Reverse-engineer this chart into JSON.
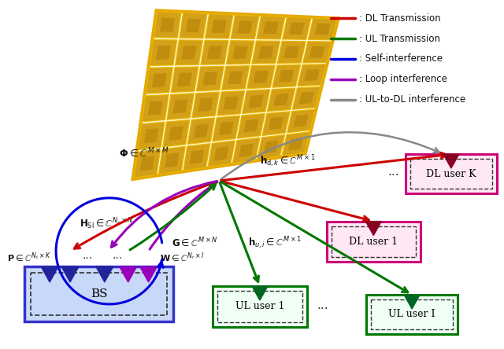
{
  "bg_color": "#ffffff",
  "legend_entries": [
    {
      "color": "#cc0000",
      "label": ": DL Transmission"
    },
    {
      "color": "#007700",
      "label": ": UL Transmission"
    },
    {
      "color": "#0000dd",
      "label": ": Self-interference"
    },
    {
      "color": "#9900bb",
      "label": ": Loop interference"
    },
    {
      "color": "#888888",
      "label": ": UL-to-DL interference"
    }
  ]
}
